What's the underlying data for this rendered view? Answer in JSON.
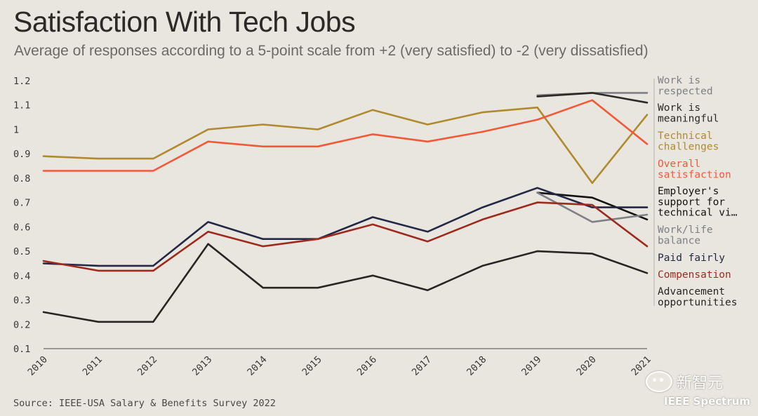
{
  "header": {
    "title": "Satisfaction With Tech Jobs",
    "subtitle": "Average of responses according to a 5-point scale from +2 (very satisfied) to -2 (very dissatisfied)"
  },
  "footer": {
    "source": "Source: IEEE-USA Salary & Benefits Survey 2022",
    "watermark": "新智元",
    "logo": "IEEE Spectrum"
  },
  "chart_data": {
    "type": "line",
    "title": "Satisfaction With Tech Jobs",
    "xlabel": "",
    "ylabel": "",
    "ylim": [
      0.1,
      1.2
    ],
    "yticks": [
      "0.1",
      "0.2",
      "0.3",
      "0.4",
      "0.5",
      "0.6",
      "0.7",
      "0.8",
      "0.9",
      "1",
      "1.1",
      "1.2"
    ],
    "categories": [
      "2010",
      "2011",
      "2012",
      "2013",
      "2014",
      "2015",
      "2016",
      "2017",
      "2018",
      "2019",
      "2020",
      "2021"
    ],
    "series": [
      {
        "name": "Work is respected",
        "label_lines": [
          "Work is",
          "respected"
        ],
        "color": "#7d8187",
        "values": [
          null,
          null,
          null,
          null,
          null,
          null,
          null,
          null,
          null,
          1.14,
          1.15,
          1.15
        ]
      },
      {
        "name": "Work is meaningful",
        "label_lines": [
          "Work is",
          "meaningful"
        ],
        "color": "#2c2a26",
        "values": [
          null,
          null,
          null,
          null,
          null,
          null,
          null,
          null,
          null,
          1.135,
          1.15,
          1.11
        ]
      },
      {
        "name": "Technical challenges",
        "label_lines": [
          "Technical",
          "challenges"
        ],
        "color": "#b08a2e",
        "values": [
          0.89,
          0.88,
          0.88,
          1.0,
          1.02,
          1.0,
          1.08,
          1.02,
          1.07,
          1.09,
          0.78,
          1.06
        ]
      },
      {
        "name": "Overall satisfaction",
        "label_lines": [
          "Overall",
          "satisfaction"
        ],
        "color": "#f05a36",
        "values": [
          0.83,
          0.83,
          0.83,
          0.95,
          0.93,
          0.93,
          0.98,
          0.95,
          0.99,
          1.04,
          1.12,
          0.94
        ]
      },
      {
        "name": "Employer's support for technical vi…",
        "label_lines": [
          "Employer's",
          "support for",
          "technical vi…"
        ],
        "color": "#121212",
        "values": [
          null,
          null,
          null,
          null,
          null,
          null,
          null,
          null,
          null,
          0.74,
          0.72,
          0.63
        ]
      },
      {
        "name": "Work/life balance",
        "label_lines": [
          "Work/life",
          "balance"
        ],
        "color": "#7d8187",
        "values": [
          null,
          null,
          null,
          null,
          null,
          null,
          null,
          null,
          null,
          0.74,
          0.62,
          0.65
        ]
      },
      {
        "name": "Paid fairly",
        "label_lines": [
          "Paid fairly"
        ],
        "color": "#232845",
        "values": [
          0.45,
          0.44,
          0.44,
          0.62,
          0.55,
          0.55,
          0.64,
          0.58,
          0.68,
          0.76,
          0.68,
          0.68
        ]
      },
      {
        "name": "Compensation",
        "label_lines": [
          "Compensation"
        ],
        "color": "#9e2a1e",
        "values": [
          0.46,
          0.42,
          0.42,
          0.58,
          0.52,
          0.55,
          0.61,
          0.54,
          0.63,
          0.7,
          0.69,
          0.52
        ]
      },
      {
        "name": "Advancement opportunities",
        "label_lines": [
          "Advancement",
          "opportunities"
        ],
        "color": "#262626",
        "values": [
          0.25,
          0.21,
          0.21,
          0.53,
          0.35,
          0.35,
          0.4,
          0.34,
          0.44,
          0.5,
          0.49,
          0.41
        ]
      }
    ]
  }
}
